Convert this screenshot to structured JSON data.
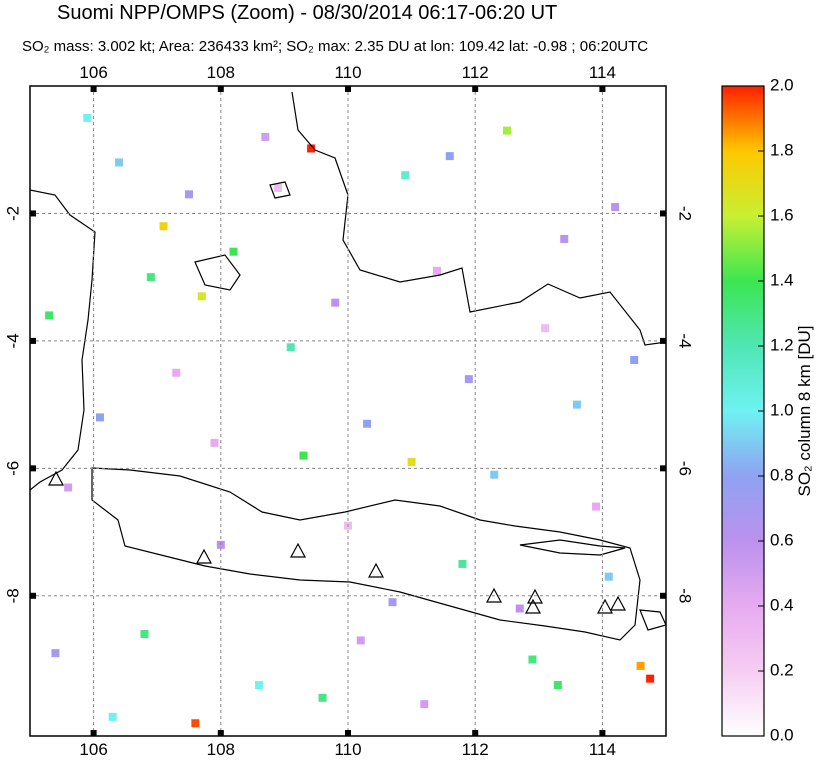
{
  "chart_data": {
    "type": "map",
    "title": "Suomi NPP/OMPS (Zoom) - 08/30/2014 06:17-06:20 UT",
    "subtitle": "SO₂ mass: 3.002 kt; Area: 236433 km²; SO₂ max: 2.35 DU at lon: 109.42 lat: -0.98 ; 06:20UTC",
    "xlim": [
      105,
      115
    ],
    "ylim": [
      -10.2,
      0
    ],
    "xticks": [
      106,
      108,
      110,
      112,
      114
    ],
    "yticks": [
      -2,
      -4,
      -6,
      -8
    ],
    "grid": true,
    "colorbar": {
      "label": "SO₂ column 8 km [DU]",
      "clim": [
        0,
        2
      ],
      "colormap": [
        "#ffffff",
        "#f6cdf2",
        "#e7aaf0",
        "#bb92ee",
        "#8fa2f2",
        "#6ef2f2",
        "#50e6b4",
        "#3ce650",
        "#c8f032",
        "#ffc800",
        "#ff2000"
      ],
      "ticks": [
        {
          "value": 0,
          "label": "0.0"
        },
        0.2,
        0.4,
        0.6,
        0.8,
        {
          "value": 1,
          "label": "1.0"
        },
        1.2,
        1.4,
        1.6,
        1.8,
        {
          "value": 2,
          "label": "2.0"
        }
      ]
    },
    "pixels": {
      "lon": [
        109.42,
        107.6,
        114.75,
        114.6,
        107.1,
        105.9,
        106.4,
        106.9,
        107.5,
        108.2,
        108.7,
        109.1,
        109.8,
        110.3,
        110.9,
        111.4,
        111.9,
        112.5,
        113.1,
        113.6,
        114.2,
        105.3,
        105.6,
        106.1,
        106.8,
        107.3,
        108.0,
        108.6,
        109.3,
        110.0,
        110.7,
        111.2,
        111.8,
        112.3,
        112.9,
        113.4,
        113.9,
        114.5,
        105.4,
        106.3,
        107.7,
        108.9,
        110.2,
        111.0,
        112.7,
        113.3,
        114.1,
        107.9,
        111.6,
        109.6
      ],
      "lat": [
        -0.98,
        -10.0,
        -9.3,
        -9.1,
        -2.2,
        -0.5,
        -1.2,
        -3.0,
        -1.7,
        -2.6,
        -0.8,
        -4.1,
        -3.4,
        -5.3,
        -1.4,
        -2.9,
        -4.6,
        -0.7,
        -3.8,
        -5.0,
        -1.9,
        -3.6,
        -6.3,
        -5.2,
        -8.6,
        -4.5,
        -7.2,
        -9.4,
        -5.8,
        -6.9,
        -8.1,
        -9.7,
        -7.5,
        -6.1,
        -9.0,
        -2.4,
        -6.6,
        -4.3,
        -8.9,
        -9.9,
        -3.3,
        -1.6,
        -8.7,
        -5.9,
        -8.2,
        -9.4,
        -7.7,
        -5.6,
        -1.1,
        -9.6
      ],
      "values": [
        2.35,
        1.95,
        2.0,
        1.85,
        1.75,
        1.0,
        0.9,
        1.3,
        0.7,
        1.4,
        0.5,
        1.2,
        0.6,
        0.8,
        1.1,
        0.4,
        0.7,
        1.55,
        0.3,
        0.9,
        0.6,
        1.35,
        0.5,
        0.8,
        1.3,
        0.4,
        0.6,
        1.0,
        1.4,
        0.3,
        0.7,
        0.5,
        1.25,
        0.9,
        1.3,
        0.6,
        0.4,
        0.8,
        0.7,
        1.0,
        1.65,
        0.3,
        0.5,
        1.7,
        0.6,
        1.35,
        0.9,
        0.4,
        0.8,
        1.3
      ]
    }
  }
}
